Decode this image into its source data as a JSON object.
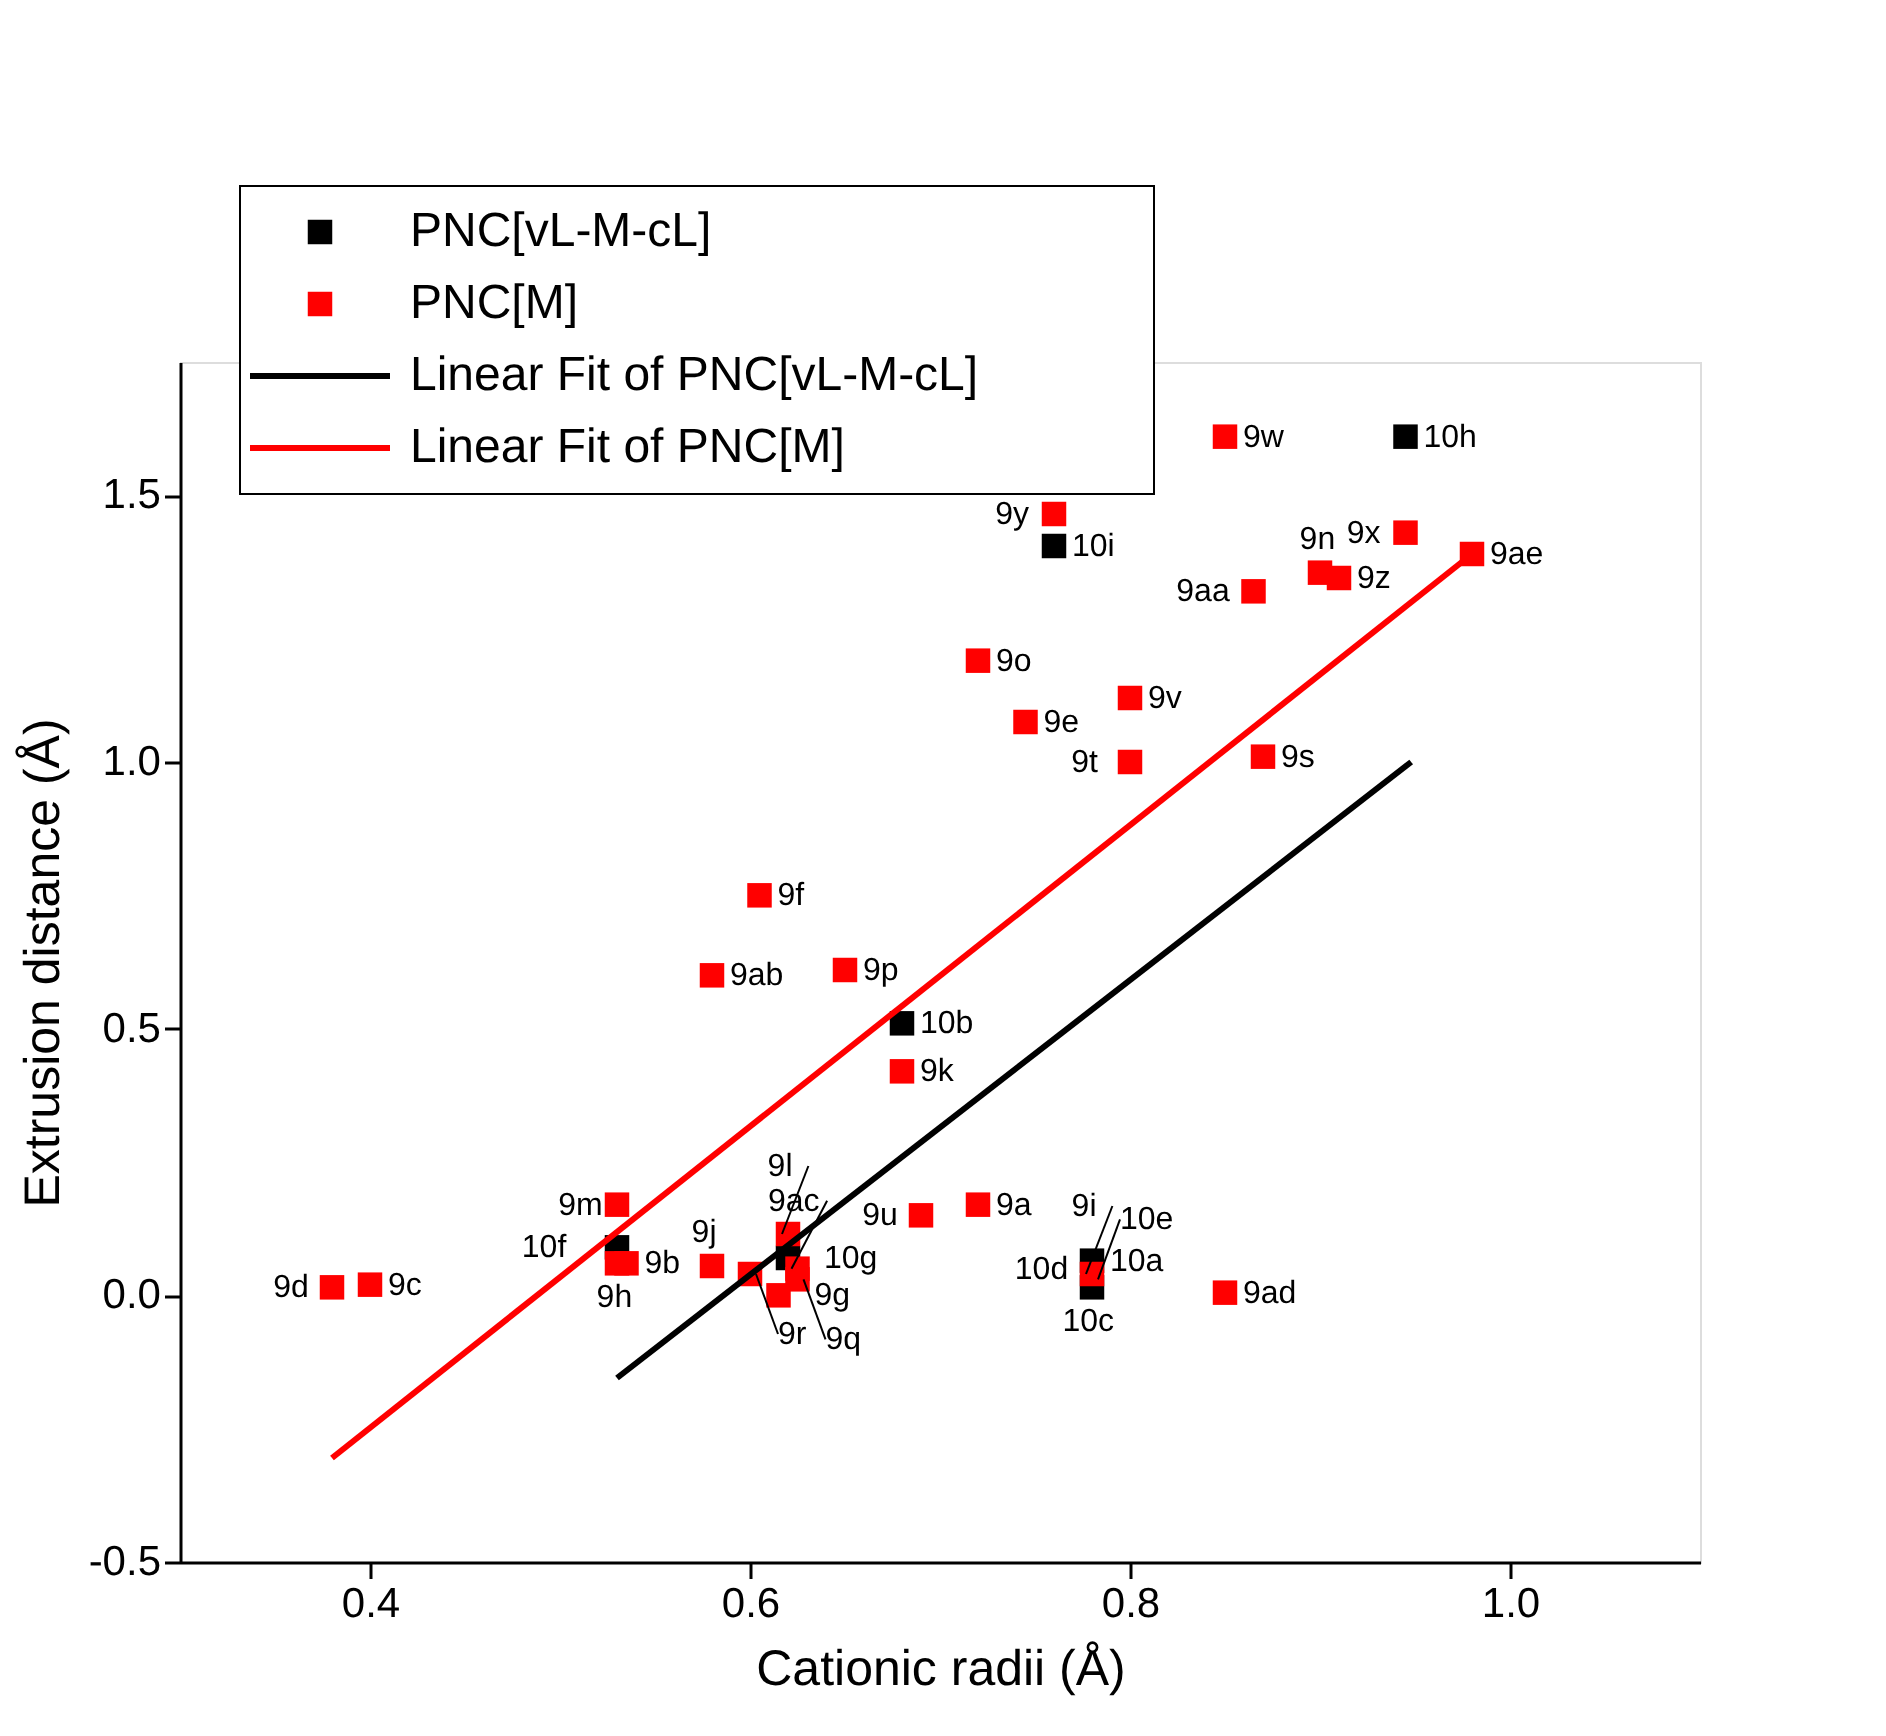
{
  "chart_data": {
    "type": "scatter",
    "xlabel": "Cationic radii (Å)",
    "ylabel": "Extrusion distance (Å)",
    "xlim": [
      0.3,
      1.1
    ],
    "ylim": [
      -0.5,
      1.75
    ],
    "xticks": [
      0.4,
      0.6,
      0.8,
      {
        "value": 1,
        "label": "1.0"
      }
    ],
    "yticks": [
      -0.5,
      {
        "value": 0,
        "label": "0.0"
      },
      0.5,
      {
        "value": 1,
        "label": "1.0"
      },
      1.5
    ],
    "grid": false,
    "legend": "top left",
    "marker": "square",
    "series": [
      {
        "name": "PNC[vL-M-cL]",
        "color": "#000000",
        "x": [
          0.53,
          0.62,
          0.68,
          0.76,
          0.945,
          0.78,
          0.78
        ],
        "values": [
          0.09,
          0.07,
          0.51,
          1.405,
          1.61,
          0.065,
          0.015
        ]
      },
      {
        "name": "PNC[M]",
        "color": "#ff0000",
        "x": [
          0.38,
          0.4,
          0.53,
          0.53,
          0.535,
          0.58,
          0.6,
          0.615,
          0.625,
          0.625,
          0.62,
          0.69,
          0.72,
          0.78,
          0.85,
          0.85,
          0.76,
          0.945,
          0.98,
          0.9,
          0.91,
          0.865,
          0.72,
          0.8,
          0.745,
          0.8,
          0.87,
          0.605,
          0.58,
          0.65,
          0.68
        ],
        "values": [
          0.015,
          0.02,
          0.17,
          0.06,
          0.06,
          0.055,
          0.04,
          0.0,
          0.03,
          0.05,
          0.115,
          0.15,
          0.17,
          0.04,
          0.005,
          1.61,
          1.465,
          1.43,
          1.39,
          1.355,
          1.345,
          1.32,
          1.19,
          1.12,
          1.075,
          1.0,
          1.01,
          0.75,
          0.6,
          0.61,
          0.42
        ]
      },
      {
        "name": "Linear Fit of PNC[vL-M-cL]",
        "color": "#000000",
        "type": "line",
        "marker": "none",
        "line_style": "solid",
        "x": [
          0.53,
          0.948
        ],
        "values": [
          -0.155,
          1.0
        ]
      },
      {
        "name": "Linear Fit of PNC[M]",
        "color": "#ff0000",
        "type": "line",
        "marker": "none",
        "line_style": "solid",
        "x": [
          0.38,
          0.98
        ],
        "values": [
          -0.305,
          1.39
        ]
      }
    ],
    "annotations": [
      {
        "text": "10f",
        "x": 0.53,
        "y": 0.09
      },
      {
        "text": "10g",
        "x": 0.62,
        "y": 0.07
      },
      {
        "text": "10b",
        "x": 0.68,
        "y": 0.51
      },
      {
        "text": "10i",
        "x": 0.76,
        "y": 1.405
      },
      {
        "text": "10h",
        "x": 0.945,
        "y": 1.61
      },
      {
        "text": "10a",
        "x": 0.78,
        "y": 0.065
      },
      {
        "text": "10d",
        "x": 0.78,
        "y": 0.05
      },
      {
        "text": "10e",
        "x": 0.78,
        "y": 0.03
      },
      {
        "text": "10c",
        "x": 0.78,
        "y": 0.015
      },
      {
        "text": "9d",
        "x": 0.38,
        "y": 0.015
      },
      {
        "text": "9c",
        "x": 0.4,
        "y": 0.02
      },
      {
        "text": "9m",
        "x": 0.53,
        "y": 0.17
      },
      {
        "text": "9h",
        "x": 0.53,
        "y": 0.06
      },
      {
        "text": "9b",
        "x": 0.535,
        "y": 0.06
      },
      {
        "text": "9j",
        "x": 0.58,
        "y": 0.055
      },
      {
        "text": "9r",
        "x": 0.6,
        "y": 0.04
      },
      {
        "text": "9g",
        "x": 0.615,
        "y": 0.0
      },
      {
        "text": "9q",
        "x": 0.625,
        "y": 0.03
      },
      {
        "text": "9ac",
        "x": 0.625,
        "y": 0.05
      },
      {
        "text": "9l",
        "x": 0.62,
        "y": 0.115
      },
      {
        "text": "9u",
        "x": 0.69,
        "y": 0.15
      },
      {
        "text": "9a",
        "x": 0.72,
        "y": 0.17
      },
      {
        "text": "9i",
        "x": 0.78,
        "y": 0.04
      },
      {
        "text": "9ad",
        "x": 0.85,
        "y": 0.005
      },
      {
        "text": "9w",
        "x": 0.85,
        "y": 1.61
      },
      {
        "text": "9y",
        "x": 0.76,
        "y": 1.465
      },
      {
        "text": "9x",
        "x": 0.945,
        "y": 1.43
      },
      {
        "text": "9ae",
        "x": 0.98,
        "y": 1.39
      },
      {
        "text": "9n",
        "x": 0.9,
        "y": 1.355
      },
      {
        "text": "9z",
        "x": 0.91,
        "y": 1.345
      },
      {
        "text": "9aa",
        "x": 0.865,
        "y": 1.32
      },
      {
        "text": "9o",
        "x": 0.72,
        "y": 1.19
      },
      {
        "text": "9v",
        "x": 0.8,
        "y": 1.12
      },
      {
        "text": "9e",
        "x": 0.745,
        "y": 1.075
      },
      {
        "text": "9t",
        "x": 0.8,
        "y": 1.0
      },
      {
        "text": "9s",
        "x": 0.87,
        "y": 1.01
      },
      {
        "text": "9f",
        "x": 0.605,
        "y": 0.75
      },
      {
        "text": "9ab",
        "x": 0.58,
        "y": 0.6
      },
      {
        "text": "9p",
        "x": 0.65,
        "y": 0.61
      },
      {
        "text": "9k",
        "x": 0.68,
        "y": 0.42
      }
    ]
  }
}
